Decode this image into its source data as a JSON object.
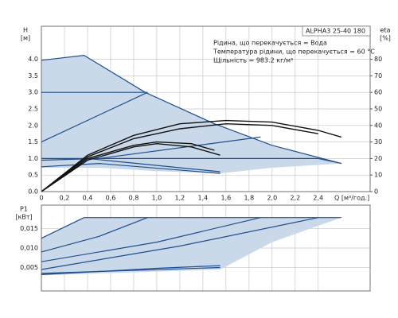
{
  "chart_data": [
    {
      "type": "line",
      "ylabel": "H",
      "ylabel_unit": "[м]",
      "y2label": "eta",
      "y2label_unit": "[%]",
      "xlabel": "Q [м³/год.]",
      "legend_title": "ALPHA3 25-40 180",
      "notes": [
        "Рідина, що перекачується = Вода",
        "Температура рідини, що перекачується = 60 °C",
        "Щільність = 983.2 кг/м³"
      ],
      "xlim": [
        0,
        2.85
      ],
      "xticks": [
        0,
        {
          "value": 0.2,
          "label": "0,2"
        },
        {
          "value": 0.4,
          "label": "0,4"
        },
        {
          "value": 0.6,
          "label": "0,6"
        },
        {
          "value": 0.8,
          "label": "0,8"
        },
        {
          "value": 1.0,
          "label": "1,0"
        },
        {
          "value": 1.2,
          "label": "1,2"
        },
        {
          "value": 1.4,
          "label": "1,4"
        },
        {
          "value": 1.6,
          "label": "1,6"
        },
        {
          "value": 1.8,
          "label": "1,8"
        },
        {
          "value": 2.0,
          "label": "2,0"
        },
        {
          "value": 2.2,
          "label": "2,2"
        },
        {
          "value": 2.4,
          "label": "2,4"
        }
      ],
      "show_xtick_labels": true,
      "ylim": [
        0,
        5
      ],
      "yticks": [
        {
          "value": 0,
          "label": "0.0"
        },
        0.5,
        {
          "value": 1,
          "label": "1.0"
        },
        1.5,
        {
          "value": 2,
          "label": "2.0"
        },
        2.5,
        {
          "value": 3,
          "label": "3.0"
        },
        3.5,
        {
          "value": 4,
          "label": "4.0"
        }
      ],
      "y2lim": [
        0,
        100
      ],
      "y2ticks": [
        0,
        10,
        20,
        30,
        40,
        50,
        60,
        70,
        80
      ],
      "grid": true,
      "curves": [
        {
          "kind": "area",
          "color": "#c9d9ea",
          "x": [
            0,
            0.37,
            0.9,
            1.5,
            2.0,
            2.6,
            2.0,
            1.55,
            1.0,
            0.5,
            0
          ],
          "y": [
            3.97,
            4.12,
            3.0,
            2.05,
            1.4,
            0.85,
            0.72,
            0.55,
            0.62,
            0.72,
            0.72
          ]
        },
        {
          "kind": "line",
          "color": "#1f4e8c",
          "x": [
            0,
            0.37,
            0.9,
            1.5,
            2.0,
            2.6
          ],
          "y": [
            3.97,
            4.12,
            3.0,
            2.05,
            1.4,
            0.85
          ]
        },
        {
          "kind": "line",
          "color": "#1f4e8c",
          "x": [
            0,
            0.92
          ],
          "y": [
            3.0,
            3.0
          ]
        },
        {
          "kind": "line",
          "color": "#1f4e8c",
          "x": [
            0,
            0.92
          ],
          "y": [
            1.5,
            3.0
          ]
        },
        {
          "kind": "line",
          "color": "#1f4e8c",
          "x": [
            0,
            2.4,
            2.6
          ],
          "y": [
            1.0,
            1.0,
            0.85
          ]
        },
        {
          "kind": "line",
          "color": "#1f4e8c",
          "x": [
            0,
            0.5,
            1.9
          ],
          "y": [
            0.95,
            1.0,
            1.65
          ]
        },
        {
          "kind": "line",
          "color": "#1f4e8c",
          "x": [
            0.4,
            1.55
          ],
          "y": [
            1.0,
            0.6
          ]
        },
        {
          "kind": "line",
          "color": "#1f4e8c",
          "x": [
            0,
            0.5,
            1.55
          ],
          "y": [
            0.75,
            0.85,
            0.55
          ]
        },
        {
          "kind": "line",
          "axis": "y2",
          "color": "#111111",
          "x": [
            0,
            0.4,
            0.8,
            1.2,
            1.6,
            2.0,
            2.4,
            2.6
          ],
          "y": [
            0,
            22,
            34,
            41,
            43,
            42,
            37,
            33
          ]
        },
        {
          "kind": "line",
          "axis": "y2",
          "color": "#111111",
          "x": [
            0,
            0.4,
            0.8,
            1.2,
            1.6,
            2.0,
            2.4
          ],
          "y": [
            0,
            21,
            32,
            38,
            41,
            40,
            35
          ]
        },
        {
          "kind": "line",
          "axis": "y2",
          "color": "#111111",
          "x": [
            0,
            0.4,
            0.8,
            1.0,
            1.3,
            1.5
          ],
          "y": [
            0,
            20,
            28,
            30,
            29,
            25
          ]
        },
        {
          "kind": "line",
          "axis": "y2",
          "color": "#111111",
          "x": [
            0,
            0.4,
            0.8,
            1.0,
            1.3,
            1.55
          ],
          "y": [
            0,
            19,
            27,
            29,
            27,
            22
          ]
        }
      ]
    },
    {
      "type": "line",
      "ylabel": "P1",
      "ylabel_unit": "[кВт]",
      "xlim": [
        0,
        2.85
      ],
      "xticks": [
        0,
        0.2,
        0.4,
        0.6,
        0.8,
        1.0,
        1.2,
        1.4,
        1.6,
        1.8,
        2.0,
        2.2,
        2.4
      ],
      "show_xtick_labels": false,
      "ylim": [
        -0.001,
        0.021
      ],
      "yticks": [
        {
          "value": 0.005,
          "label": "0,005"
        },
        {
          "value": 0.01,
          "label": "0,010"
        },
        {
          "value": 0.015,
          "label": "0,015"
        }
      ],
      "grid": true,
      "curves": [
        {
          "kind": "area",
          "color": "#c9d9ea",
          "x": [
            0,
            0.37,
            2.6,
            2.0,
            1.55,
            0
          ],
          "y": [
            0.0125,
            0.0178,
            0.0178,
            0.0115,
            0.0045,
            0.003
          ]
        },
        {
          "kind": "line",
          "color": "#1f4e8c",
          "x": [
            0.37,
            2.6
          ],
          "y": [
            0.0178,
            0.0178
          ]
        },
        {
          "kind": "line",
          "color": "#1f4e8c",
          "x": [
            0,
            0.37
          ],
          "y": [
            0.0125,
            0.0178
          ]
        },
        {
          "kind": "line",
          "color": "#1f4e8c",
          "x": [
            0,
            0.5,
            0.92
          ],
          "y": [
            0.009,
            0.013,
            0.0178
          ]
        },
        {
          "kind": "line",
          "color": "#1f4e8c",
          "x": [
            0,
            1.0,
            1.9
          ],
          "y": [
            0.0065,
            0.0115,
            0.0178
          ]
        },
        {
          "kind": "line",
          "color": "#1f4e8c",
          "x": [
            0,
            1.2,
            2.4
          ],
          "y": [
            0.0045,
            0.0105,
            0.0178
          ]
        },
        {
          "kind": "line",
          "color": "#1f4e8c",
          "x": [
            0,
            1.0,
            1.55
          ],
          "y": [
            0.0032,
            0.0048,
            0.0055
          ]
        },
        {
          "kind": "line",
          "color": "#1f4e8c",
          "x": [
            0,
            1.55
          ],
          "y": [
            0.0035,
            0.005
          ]
        }
      ]
    }
  ]
}
